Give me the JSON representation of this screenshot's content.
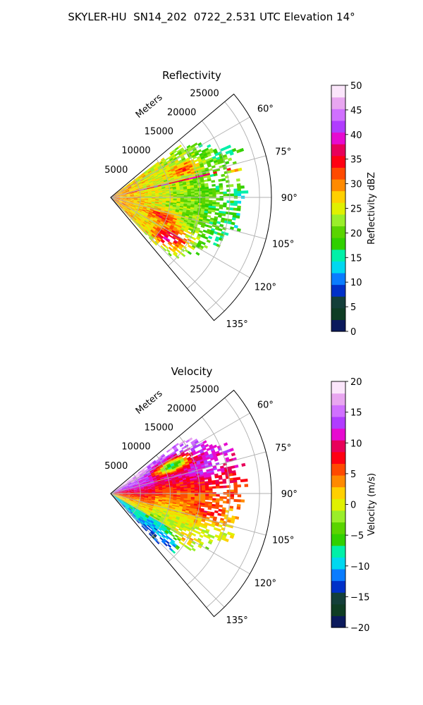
{
  "figure": {
    "suptitle": "SKYLER-HU  SN14_202  0722_2.531 UTC Elevation 14°"
  },
  "colors": {
    "reflectivity_colormap": [
      "#0b1a5c",
      "#0f3d24",
      "#143f3a",
      "#0030c8",
      "#0a7cff",
      "#00d8f0",
      "#00f0a8",
      "#30d000",
      "#5ad400",
      "#9aee2a",
      "#e0f000",
      "#ffd000",
      "#ff8a00",
      "#ff4a00",
      "#ff0012",
      "#e8005a",
      "#e60ad0",
      "#b03cff",
      "#d070ff",
      "#e8a6f0",
      "#fbe6fb"
    ],
    "velocity_colormap": [
      "#0b1a5c",
      "#0f3d24",
      "#143f3a",
      "#0030c8",
      "#0a7cff",
      "#00d8f0",
      "#00f0a8",
      "#30d000",
      "#5ad400",
      "#9aee2a",
      "#e0f000",
      "#ffd000",
      "#ff8a00",
      "#ff4a00",
      "#ff0012",
      "#e8005a",
      "#e60ad0",
      "#b03cff",
      "#d070ff",
      "#e8a6f0",
      "#fbe6fb"
    ]
  },
  "chart_data": [
    {
      "type": "heatmap",
      "title": "Reflectivity",
      "projection": "polar",
      "range_label": "Meters",
      "range_ticks": [
        5000,
        10000,
        15000,
        20000,
        25000
      ],
      "range_tick_labels": [
        "5000",
        "10000",
        "15000",
        "20000",
        "25000"
      ],
      "azimuth_range_deg": [
        50,
        140
      ],
      "azimuth_ticks_deg": [
        60,
        75,
        90,
        105,
        120,
        135
      ],
      "azimuth_tick_labels": [
        "60°",
        "75°",
        "90°",
        "105°",
        "120°",
        "135°"
      ],
      "max_range_m": 27000,
      "grid": true,
      "colorbar": {
        "label": "Reflectivity dBZ",
        "min": 0,
        "max": 50,
        "ticks": [
          0,
          5,
          10,
          15,
          20,
          25,
          30,
          35,
          40,
          45,
          50
        ],
        "tick_labels": [
          "0",
          "5",
          "10",
          "15",
          "20",
          "25",
          "30",
          "35",
          "40",
          "45",
          "50"
        ]
      },
      "data_extent_m": {
        "near_edge": 15000,
        "far_edge": 22000
      },
      "features": [
        {
          "azimuth_deg": 68,
          "range_m": 13000,
          "value": 36
        },
        {
          "azimuth_deg": 78,
          "range_m": 22000,
          "value": 38
        },
        {
          "azimuth_deg": 110,
          "range_m": 9000,
          "value": 36
        },
        {
          "azimuth_deg": 120,
          "range_m": 13000,
          "value": 36
        },
        {
          "azimuth_deg": 126,
          "range_m": 11000,
          "value": 38
        }
      ]
    },
    {
      "type": "heatmap",
      "title": "Velocity",
      "projection": "polar",
      "range_label": "Meters",
      "range_ticks": [
        5000,
        10000,
        15000,
        20000,
        25000
      ],
      "range_tick_labels": [
        "5000",
        "10000",
        "15000",
        "20000",
        "25000"
      ],
      "azimuth_range_deg": [
        50,
        140
      ],
      "azimuth_ticks_deg": [
        60,
        75,
        90,
        105,
        120,
        135
      ],
      "azimuth_tick_labels": [
        "60°",
        "75°",
        "90°",
        "105°",
        "120°",
        "135°"
      ],
      "max_range_m": 27000,
      "grid": true,
      "colorbar": {
        "label": "Velocity (m/s)",
        "min": -20,
        "max": 20,
        "ticks": [
          -20,
          -15,
          -10,
          -5,
          0,
          5,
          10,
          15,
          20
        ],
        "tick_labels": [
          "−20",
          "−15",
          "−10",
          "−5",
          "0",
          "5",
          "10",
          "15",
          "20"
        ]
      },
      "features": [
        {
          "azimuth_deg": 65,
          "range_m": 11000,
          "value": -14
        },
        {
          "azimuth_deg": 75,
          "range_m": 16000,
          "value": 14
        },
        {
          "azimuth_deg": 100,
          "range_m": 16000,
          "value": 9
        },
        {
          "azimuth_deg": 120,
          "range_m": 14000,
          "value": 4
        }
      ]
    }
  ]
}
